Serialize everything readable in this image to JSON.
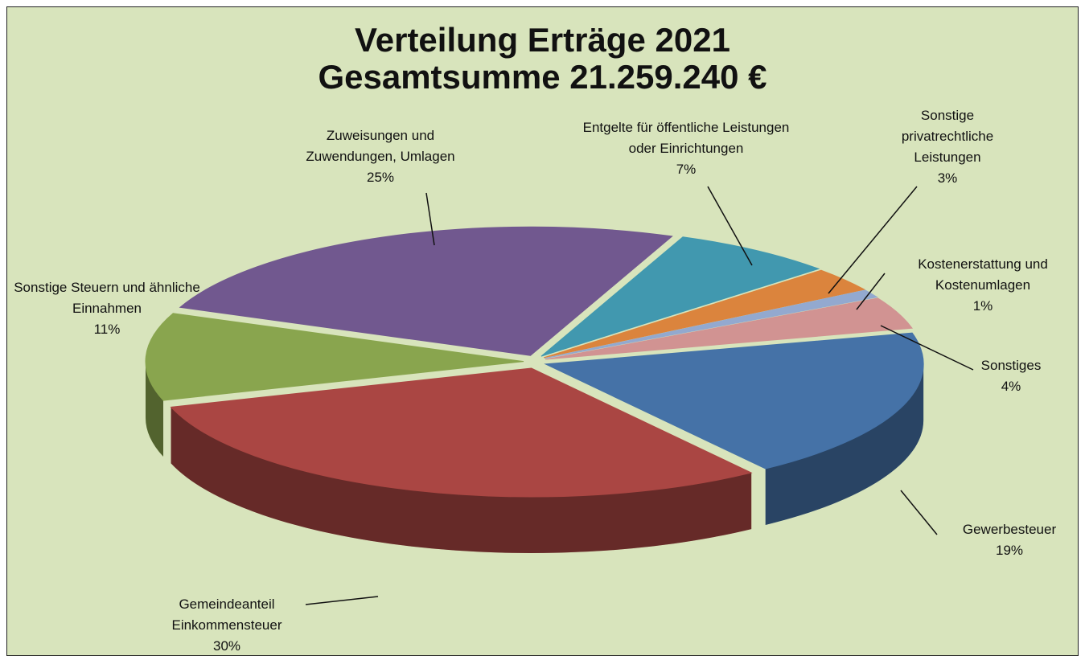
{
  "chart_data": {
    "type": "pie",
    "title": "Verteilung Erträge 2021",
    "subtitle": "Gesamtsumme 21.259.240 €",
    "categories": [
      "Gewerbesteuer",
      "Gemeindeanteil Einkommensteuer",
      "Sonstige Steuern und ähnliche Einnahmen",
      "Zuweisungen und Zuwendungen, Umlagen",
      "Entgelte für öffentliche Leistungen oder Einrichtungen",
      "Sonstige privatrechtliche Leistungen",
      "Kostenerstattung und Kostenumlagen",
      "Sonstiges"
    ],
    "values": [
      19,
      30,
      11,
      25,
      7,
      3,
      1,
      4
    ],
    "value_labels": [
      "19%",
      "30%",
      "11%",
      "25%",
      "7%",
      "3%",
      "1%",
      "4%"
    ],
    "colors": [
      "#4572a7",
      "#aa4643",
      "#89a54e",
      "#71588f",
      "#4198af",
      "#db843d",
      "#93a9cf",
      "#d19392"
    ]
  }
}
